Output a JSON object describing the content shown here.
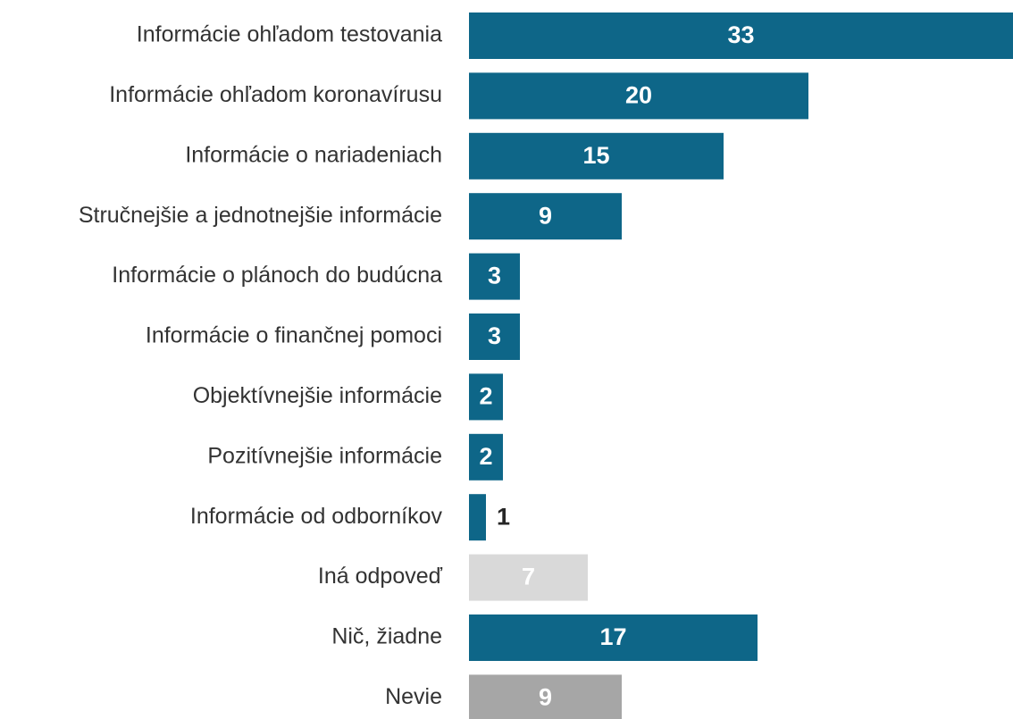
{
  "chart_data": {
    "type": "bar",
    "orientation": "horizontal",
    "categories": [
      "Informácie ohľadom testovania",
      "Informácie ohľadom koronavírusu",
      "Informácie o nariadeniach",
      "Stručnejšie a jednotnejšie informácie",
      "Informácie o plánoch do budúcna",
      "Informácie o finančnej pomoci",
      "Objektívnejšie informácie",
      "Pozitívnejšie informácie",
      "Informácie od odborníkov",
      "Iná odpoveď",
      "Nič, žiadne",
      "Nevie"
    ],
    "values": [
      33,
      20,
      15,
      9,
      3,
      3,
      2,
      2,
      1,
      7,
      17,
      9
    ],
    "colors": [
      "#0e6688",
      "#0e6688",
      "#0e6688",
      "#0e6688",
      "#0e6688",
      "#0e6688",
      "#0e6688",
      "#0e6688",
      "#0e6688",
      "#d9d9d9",
      "#0e6688",
      "#a6a6a6"
    ]
  }
}
